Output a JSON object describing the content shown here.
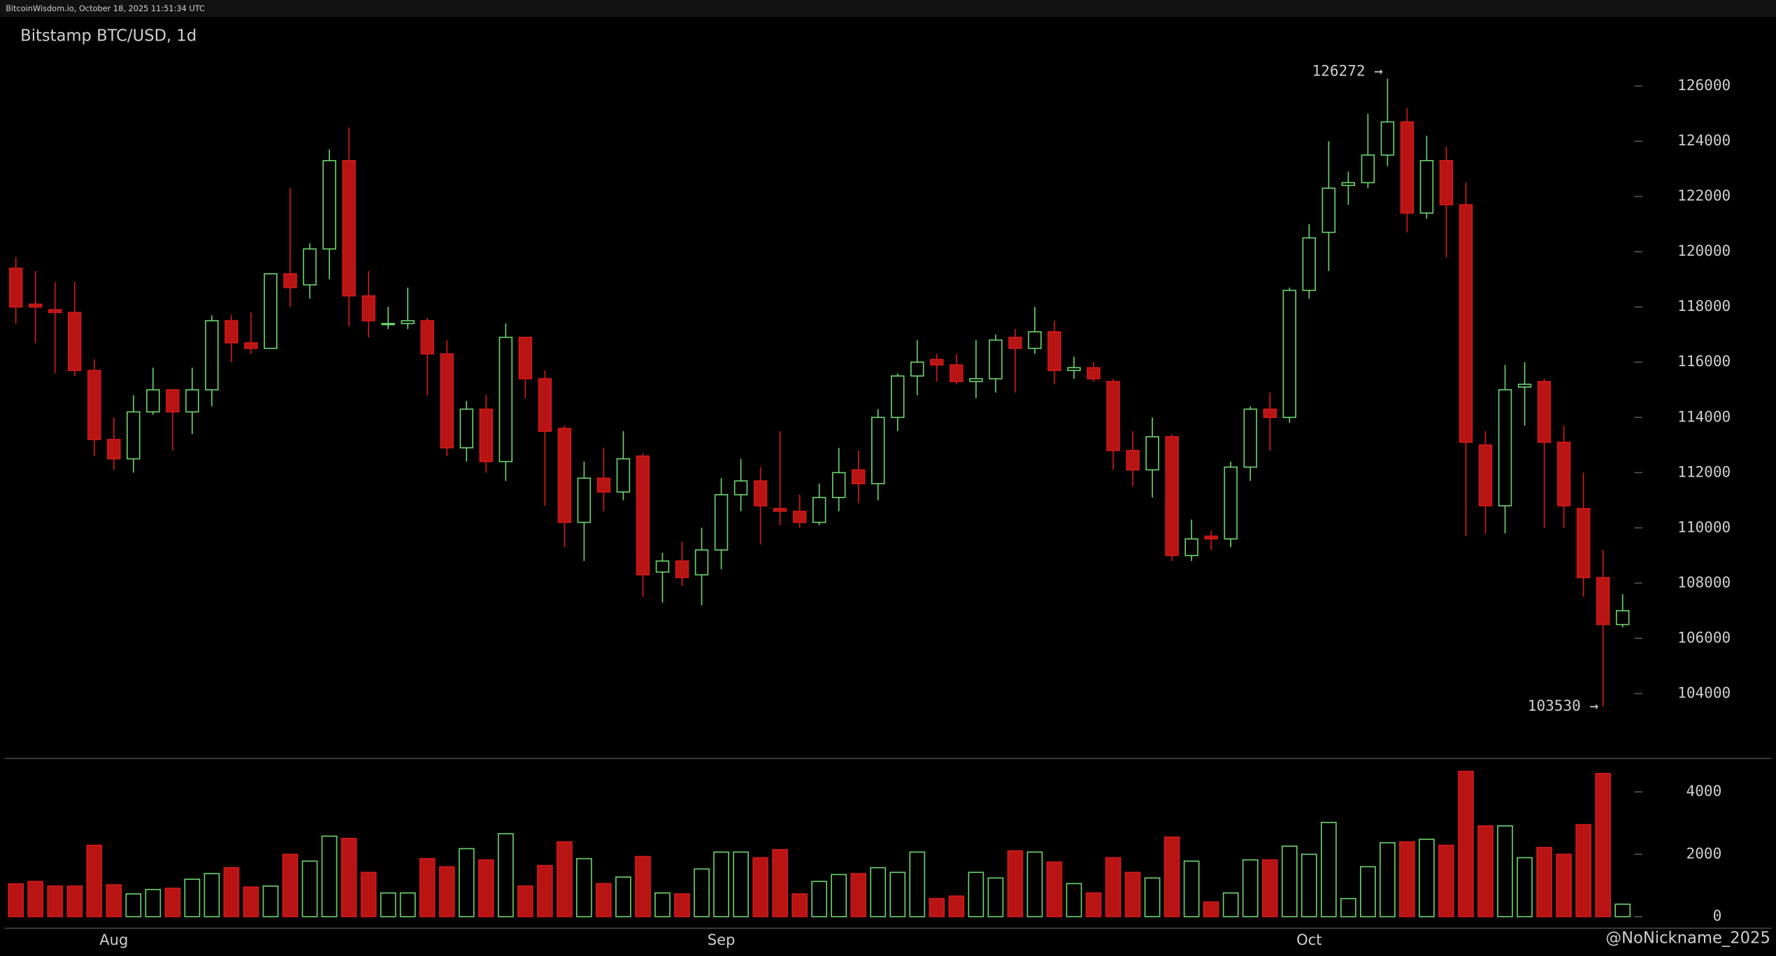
{
  "chart_data": {
    "type": "candlestick",
    "source": "BitcoinWisdom.io, October 18, 2025 11:51:34 UTC",
    "title": "Bitstamp BTC/USD, 1d",
    "watermark": "@NoNickname_2025",
    "categories": [
      null,
      null,
      null,
      null,
      null,
      "Aug",
      null,
      null,
      null,
      null,
      null,
      null,
      null,
      null,
      null,
      null,
      null,
      null,
      null,
      null,
      null,
      null,
      null,
      null,
      null,
      null,
      null,
      null,
      null,
      null,
      null,
      null,
      null,
      null,
      null,
      null,
      "Sep",
      null,
      null,
      null,
      null,
      null,
      null,
      null,
      null,
      null,
      null,
      null,
      null,
      null,
      null,
      null,
      null,
      null,
      null,
      null,
      null,
      null,
      null,
      null,
      null,
      null,
      null,
      null,
      null,
      null,
      "Oct",
      null,
      null,
      null,
      null,
      null,
      null,
      null,
      null,
      null,
      null,
      null,
      null,
      null,
      null,
      null,
      null
    ],
    "open": [
      119400,
      118100,
      117900,
      117800,
      115700,
      113200,
      112500,
      114200,
      115000,
      114200,
      115000,
      117500,
      116700,
      116500,
      119200,
      118800,
      120100,
      123300,
      118400,
      117400,
      117400,
      117500,
      116300,
      112900,
      114300,
      112400,
      116900,
      115400,
      113600,
      110200,
      111800,
      111300,
      112600,
      108400,
      108800,
      108300,
      109200,
      111200,
      111700,
      110700,
      110600,
      110200,
      111100,
      112100,
      111600,
      114000,
      115500,
      116100,
      115900,
      115300,
      115400,
      116900,
      116500,
      117100,
      115700,
      115800,
      115300,
      112800,
      112100,
      113300,
      109000,
      109700,
      109600,
      112200,
      114300,
      114000,
      118600,
      120700,
      122400,
      122500,
      123500,
      124700,
      121400,
      123300,
      121700,
      113000,
      110800,
      115100,
      115300,
      113100,
      110700,
      108200,
      106500
    ],
    "high": [
      119800,
      119300,
      118900,
      118900,
      116100,
      114000,
      114800,
      115800,
      115000,
      115800,
      117700,
      117700,
      117800,
      119200,
      122300,
      120300,
      123700,
      124500,
      119300,
      118000,
      118700,
      117600,
      116800,
      114600,
      114800,
      117400,
      116900,
      115700,
      113700,
      112400,
      112900,
      113500,
      112700,
      109100,
      109500,
      110000,
      111800,
      112500,
      112200,
      113500,
      111200,
      111600,
      112900,
      112800,
      114300,
      115600,
      116800,
      116300,
      116300,
      116800,
      117000,
      117200,
      118000,
      117500,
      116200,
      116000,
      115400,
      113500,
      114000,
      113400,
      110300,
      109900,
      112400,
      114400,
      114900,
      118700,
      121000,
      124000,
      122900,
      125000,
      126272,
      125200,
      124200,
      123800,
      122500,
      113500,
      115900,
      116000,
      115400,
      113700,
      112000,
      109200,
      107600
    ],
    "low": [
      117400,
      116700,
      115600,
      115500,
      112600,
      112100,
      112000,
      114100,
      112800,
      113400,
      114400,
      116000,
      116300,
      116500,
      118000,
      118300,
      119000,
      117300,
      116900,
      117200,
      117200,
      114800,
      112600,
      112400,
      112000,
      111700,
      114700,
      110800,
      109300,
      108800,
      110600,
      111000,
      107500,
      107300,
      107900,
      107200,
      108500,
      110600,
      109400,
      110100,
      110000,
      110100,
      110600,
      110900,
      111000,
      113500,
      114800,
      115300,
      115200,
      114700,
      114900,
      114900,
      116300,
      115200,
      115400,
      115300,
      112100,
      111500,
      111100,
      108800,
      108800,
      109200,
      109300,
      111700,
      112800,
      113800,
      118300,
      119300,
      121700,
      122300,
      123100,
      120700,
      121200,
      119800,
      109700,
      109800,
      109800,
      113700,
      110000,
      110000,
      107500,
      103530,
      106400
    ],
    "close": [
      118000,
      118000,
      117800,
      115700,
      113200,
      112500,
      114200,
      115000,
      114200,
      115000,
      117500,
      116700,
      116500,
      119200,
      118700,
      120100,
      123300,
      118400,
      117500,
      117400,
      117500,
      116300,
      112900,
      114300,
      112400,
      116900,
      115400,
      113500,
      110200,
      111800,
      111300,
      112500,
      108300,
      108800,
      108200,
      109200,
      111200,
      111700,
      110800,
      110600,
      110200,
      111100,
      112000,
      111600,
      114000,
      115500,
      116000,
      115900,
      115300,
      115400,
      116800,
      116500,
      117100,
      115700,
      115800,
      115400,
      112800,
      112100,
      113300,
      109000,
      109600,
      109600,
      112200,
      114300,
      114000,
      118600,
      120500,
      122300,
      122500,
      123500,
      124700,
      121400,
      123300,
      121700,
      113100,
      110800,
      115000,
      115200,
      113100,
      110800,
      108200,
      106500,
      107000
    ],
    "volume": [
      1050,
      1130,
      980,
      980,
      2290,
      1020,
      730,
      870,
      910,
      1200,
      1380,
      1570,
      950,
      980,
      2000,
      1780,
      2580,
      2510,
      1420,
      760,
      760,
      1860,
      1600,
      2180,
      1820,
      2660,
      980,
      1640,
      2400,
      1860,
      1060,
      1270,
      1930,
      760,
      730,
      1530,
      2070,
      2070,
      1890,
      2150,
      730,
      1130,
      1350,
      1380,
      1570,
      1420,
      2070,
      580,
      660,
      1420,
      1240,
      2110,
      2070,
      1750,
      1060,
      760,
      1890,
      1420,
      1240,
      2550,
      1780,
      470,
      760,
      1820,
      1820,
      2260,
      2000,
      3020,
      580,
      1600,
      2370,
      2400,
      2480,
      2290,
      4660,
      2910,
      2910,
      1890,
      2220,
      2000,
      2950,
      4590,
      400
    ],
    "up_color": "#6fd36f",
    "down_color": "#b81414",
    "ylim": [
      101650,
      128500
    ],
    "yticks": [
      104000,
      106000,
      108000,
      110000,
      112000,
      114000,
      116000,
      118000,
      120000,
      122000,
      124000,
      126000
    ],
    "volume_ylim": [
      -300,
      5000
    ],
    "volume_yticks": [
      0,
      2000,
      4000
    ],
    "annotations": [
      {
        "label": "126272 →",
        "value": 126272
      },
      {
        "label": "103530 →",
        "value": 103530
      }
    ]
  }
}
